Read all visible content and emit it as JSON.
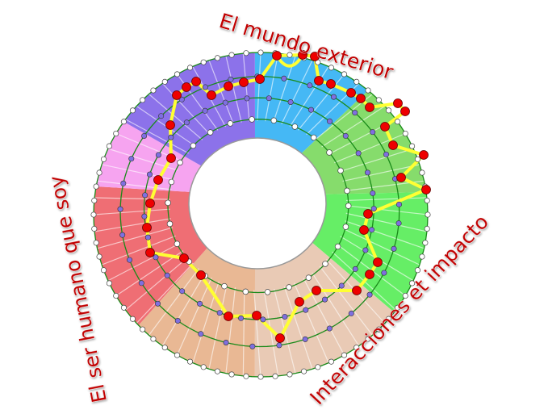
{
  "labels": {
    "top": "El mundo exterior",
    "left": "El ser humano que soy",
    "bottom_right": "Interacciones et impacto"
  },
  "colors": {
    "label_text": "#c00000",
    "sectors": [
      "#45b8f5",
      "#86dc6c",
      "#66ee66",
      "#e9cab5",
      "#e9b894",
      "#ef6e74",
      "#f6a4f0",
      "#8c72ea"
    ],
    "ring_line": "#1a8a1a",
    "path": "#ffff33",
    "node_red": "#ee0000",
    "node_purple": "#7f6fe0",
    "node_white": "#ffffff"
  }
}
